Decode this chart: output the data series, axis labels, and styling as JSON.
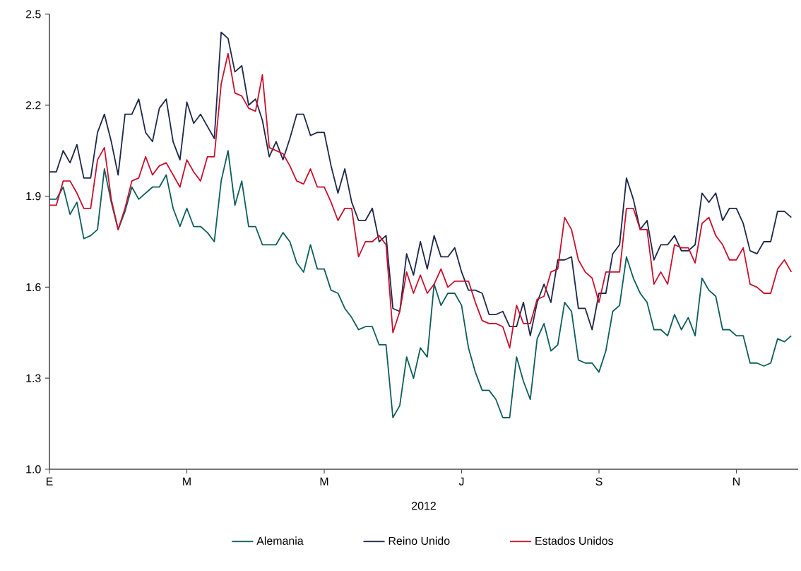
{
  "chart_data": {
    "type": "line",
    "xlabel": "2012",
    "categories": [
      "E",
      null,
      null,
      null,
      null,
      null,
      null,
      null,
      null,
      null,
      null,
      null,
      null,
      null,
      null,
      null,
      null,
      null,
      null,
      null,
      "M",
      null,
      null,
      null,
      null,
      null,
      null,
      null,
      null,
      null,
      null,
      null,
      null,
      null,
      null,
      null,
      null,
      null,
      null,
      null,
      "M",
      null,
      null,
      null,
      null,
      null,
      null,
      null,
      null,
      null,
      null,
      null,
      null,
      null,
      null,
      null,
      null,
      null,
      null,
      null,
      "J",
      null,
      null,
      null,
      null,
      null,
      null,
      null,
      null,
      null,
      null,
      null,
      null,
      null,
      null,
      null,
      null,
      null,
      null,
      null,
      "S",
      null,
      null,
      null,
      null,
      null,
      null,
      null,
      null,
      null,
      null,
      null,
      null,
      null,
      null,
      null,
      null,
      null,
      null,
      null,
      "N",
      null,
      null,
      null,
      null,
      null,
      null,
      null,
      null
    ],
    "ylim": [
      1.0,
      2.5
    ],
    "yticks": [
      {
        "value": 1.0,
        "label": "1.0"
      },
      {
        "value": 1.3,
        "label": "1.3"
      },
      {
        "value": 1.6,
        "label": "1.6"
      },
      {
        "value": 1.9,
        "label": "1.9"
      },
      {
        "value": 2.2,
        "label": "2.2"
      },
      {
        "value": 2.5,
        "label": "2.5"
      }
    ],
    "legend": "bottom",
    "marker": "none",
    "line_style": "solid",
    "series": [
      {
        "name": "Alemania",
        "color": "#0e5c5c",
        "values": [
          1.89,
          1.89,
          1.93,
          1.84,
          1.88,
          1.76,
          1.77,
          1.79,
          1.99,
          1.88,
          1.79,
          1.85,
          1.93,
          1.89,
          1.91,
          1.93,
          1.93,
          1.97,
          1.86,
          1.8,
          1.86,
          1.8,
          1.8,
          1.78,
          1.75,
          1.95,
          2.05,
          1.87,
          1.95,
          1.8,
          1.8,
          1.74,
          1.74,
          1.74,
          1.78,
          1.75,
          1.68,
          1.65,
          1.74,
          1.66,
          1.66,
          1.59,
          1.58,
          1.53,
          1.5,
          1.46,
          1.47,
          1.47,
          1.41,
          1.41,
          1.17,
          1.21,
          1.37,
          1.3,
          1.4,
          1.37,
          1.61,
          1.54,
          1.58,
          1.58,
          1.54,
          1.4,
          1.32,
          1.26,
          1.26,
          1.23,
          1.17,
          1.17,
          1.37,
          1.29,
          1.23,
          1.43,
          1.48,
          1.39,
          1.41,
          1.55,
          1.52,
          1.36,
          1.35,
          1.35,
          1.32,
          1.39,
          1.52,
          1.54,
          1.7,
          1.63,
          1.58,
          1.55,
          1.46,
          1.46,
          1.44,
          1.51,
          1.46,
          1.5,
          1.44,
          1.63,
          1.59,
          1.57,
          1.46,
          1.46,
          1.44,
          1.44,
          1.35,
          1.35,
          1.34,
          1.35,
          1.43,
          1.42,
          1.44
        ]
      },
      {
        "name": "Reino Unido",
        "color": "#1c2748",
        "values": [
          1.98,
          1.98,
          2.05,
          2.01,
          2.07,
          1.96,
          1.96,
          2.11,
          2.17,
          2.08,
          1.97,
          2.17,
          2.17,
          2.22,
          2.11,
          2.08,
          2.19,
          2.22,
          2.08,
          2.02,
          2.21,
          2.14,
          2.17,
          2.13,
          2.09,
          2.44,
          2.42,
          2.31,
          2.33,
          2.2,
          2.22,
          2.15,
          2.03,
          2.08,
          2.02,
          2.09,
          2.17,
          2.17,
          2.1,
          2.11,
          2.11,
          2.0,
          1.91,
          1.99,
          1.88,
          1.82,
          1.82,
          1.86,
          1.75,
          1.77,
          1.53,
          1.52,
          1.71,
          1.64,
          1.75,
          1.66,
          1.77,
          1.7,
          1.7,
          1.73,
          1.65,
          1.59,
          1.59,
          1.58,
          1.51,
          1.51,
          1.52,
          1.47,
          1.47,
          1.55,
          1.44,
          1.55,
          1.61,
          1.55,
          1.69,
          1.69,
          1.7,
          1.53,
          1.53,
          1.46,
          1.58,
          1.58,
          1.71,
          1.74,
          1.96,
          1.89,
          1.79,
          1.82,
          1.69,
          1.74,
          1.74,
          1.77,
          1.72,
          1.72,
          1.74,
          1.91,
          1.88,
          1.91,
          1.82,
          1.86,
          1.86,
          1.81,
          1.72,
          1.71,
          1.75,
          1.75,
          1.85,
          1.85,
          1.83
        ]
      },
      {
        "name": "Estados Unidos",
        "color": "#c8102e",
        "values": [
          1.87,
          1.87,
          1.95,
          1.95,
          1.91,
          1.86,
          1.86,
          2.02,
          2.06,
          1.89,
          1.79,
          1.86,
          1.95,
          1.96,
          2.03,
          1.97,
          2.0,
          2.01,
          1.97,
          1.93,
          2.02,
          1.98,
          1.95,
          2.03,
          2.03,
          2.27,
          2.37,
          2.24,
          2.23,
          2.19,
          2.18,
          2.3,
          2.06,
          2.05,
          2.04,
          2.0,
          1.95,
          1.94,
          1.99,
          1.93,
          1.93,
          1.88,
          1.82,
          1.86,
          1.86,
          1.7,
          1.75,
          1.75,
          1.77,
          1.74,
          1.45,
          1.52,
          1.65,
          1.58,
          1.64,
          1.58,
          1.61,
          1.66,
          1.6,
          1.62,
          1.62,
          1.62,
          1.55,
          1.49,
          1.48,
          1.48,
          1.47,
          1.4,
          1.54,
          1.48,
          1.48,
          1.56,
          1.57,
          1.65,
          1.66,
          1.83,
          1.79,
          1.69,
          1.65,
          1.63,
          1.55,
          1.65,
          1.65,
          1.65,
          1.86,
          1.86,
          1.79,
          1.79,
          1.61,
          1.65,
          1.61,
          1.74,
          1.73,
          1.73,
          1.68,
          1.81,
          1.83,
          1.77,
          1.74,
          1.69,
          1.69,
          1.73,
          1.61,
          1.6,
          1.58,
          1.58,
          1.66,
          1.69,
          1.65
        ]
      }
    ]
  }
}
